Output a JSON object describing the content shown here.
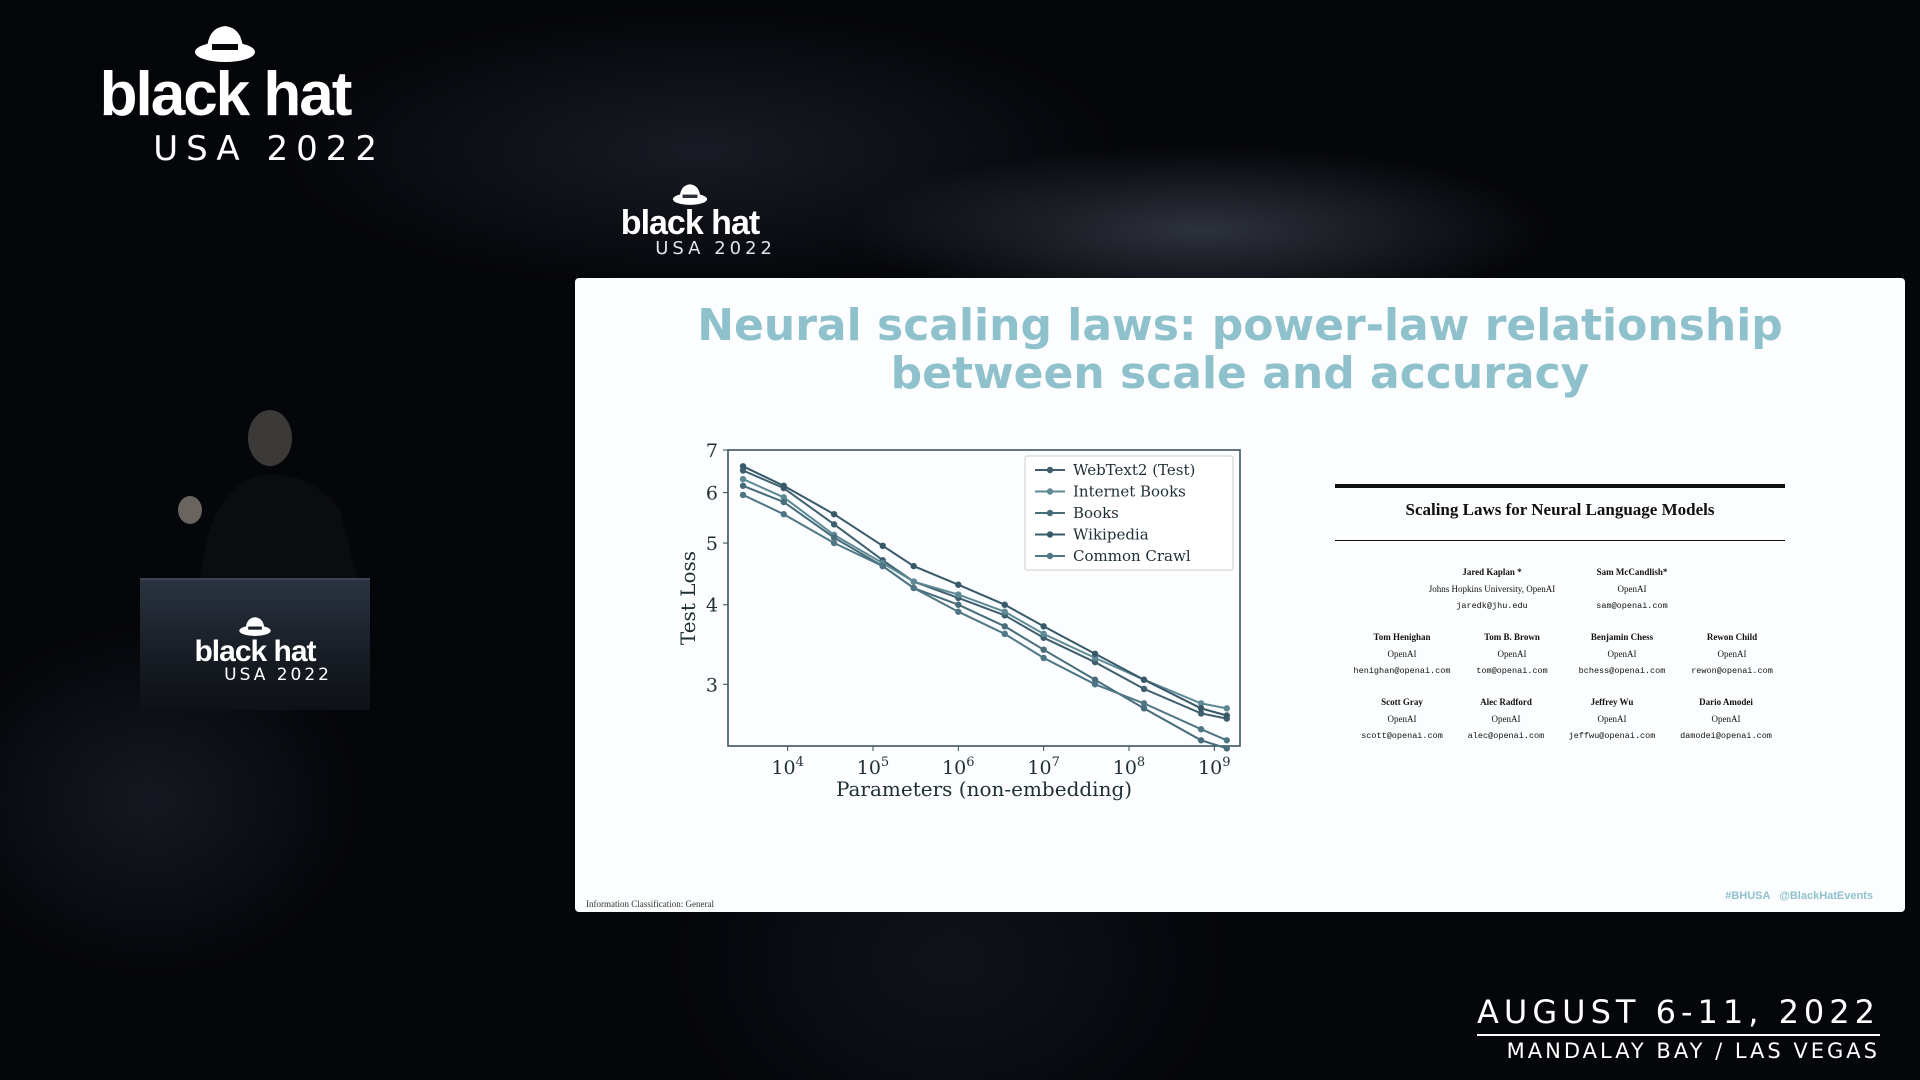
{
  "event": {
    "brand": "black hat",
    "edition": "USA 2022",
    "dates": "AUGUST 6-11, 2022",
    "venue": "MANDALAY BAY / LAS VEGAS"
  },
  "slide": {
    "title_line1": "Neural scaling laws: power-law relationship",
    "title_line2": "between scale and accuracy",
    "classification": "Information Classification: General",
    "hashtags": "#BHUSA @BlackHatEvents",
    "accent_color": "#8fc1cd"
  },
  "paper": {
    "title": "Scaling Laws for Neural Language Models",
    "authors": [
      {
        "name": "Jared Kaplan *",
        "affil": "Johns Hopkins University, OpenAI",
        "email": "jaredk@jhu.edu"
      },
      {
        "name": "Sam McCandlish*",
        "affil": "OpenAI",
        "email": "sam@openai.com"
      },
      {
        "name": "Tom Henighan",
        "affil": "OpenAI",
        "email": "henighan@openai.com"
      },
      {
        "name": "Tom B. Brown",
        "affil": "OpenAI",
        "email": "tom@openai.com"
      },
      {
        "name": "Benjamin Chess",
        "affil": "OpenAI",
        "email": "bchess@openai.com"
      },
      {
        "name": "Rewon Child",
        "affil": "OpenAI",
        "email": "rewon@openai.com"
      },
      {
        "name": "Scott Gray",
        "affil": "OpenAI",
        "email": "scott@openai.com"
      },
      {
        "name": "Alec Radford",
        "affil": "OpenAI",
        "email": "alec@openai.com"
      },
      {
        "name": "Jeffrey Wu",
        "affil": "OpenAI",
        "email": "jeffwu@openai.com"
      },
      {
        "name": "Dario Amodei",
        "affil": "OpenAI",
        "email": "damodei@openai.com"
      }
    ]
  },
  "chart_data": {
    "type": "line",
    "title": "",
    "xlabel": "Parameters (non-embedding)",
    "ylabel": "Test Loss",
    "xscale": "log",
    "yscale": "log",
    "xlim": [
      2000,
      2000000000
    ],
    "ylim": [
      2.4,
      7.0
    ],
    "xticks": [
      {
        "value": 10000,
        "base": "10",
        "exp": "4"
      },
      {
        "value": 100000,
        "base": "10",
        "exp": "5"
      },
      {
        "value": 1000000,
        "base": "10",
        "exp": "6"
      },
      {
        "value": 10000000,
        "base": "10",
        "exp": "7"
      },
      {
        "value": 100000000,
        "base": "10",
        "exp": "8"
      },
      {
        "value": 1000000000,
        "base": "10",
        "exp": "9"
      }
    ],
    "yticks": [
      3,
      4,
      5,
      6,
      7
    ],
    "grid": false,
    "legend_position": "top-right",
    "series": [
      {
        "name": "WebText2 (Test)",
        "color": "#3f5f6e",
        "points": [
          [
            3000,
            6.5
          ],
          [
            9000,
            6.1
          ],
          [
            35000,
            5.35
          ],
          [
            130000,
            4.7
          ],
          [
            300000,
            4.35
          ],
          [
            1000000,
            4.1
          ],
          [
            3500000,
            3.85
          ],
          [
            10000000,
            3.55
          ],
          [
            40000000,
            3.25
          ],
          [
            150000000,
            2.95
          ],
          [
            700000000,
            2.7
          ],
          [
            1400000000,
            2.65
          ]
        ]
      },
      {
        "name": "Internet Books",
        "color": "#5d8a94",
        "points": [
          [
            3000,
            6.3
          ],
          [
            9000,
            5.9
          ],
          [
            35000,
            5.15
          ],
          [
            130000,
            4.65
          ],
          [
            300000,
            4.35
          ],
          [
            1000000,
            4.15
          ],
          [
            3500000,
            3.9
          ],
          [
            10000000,
            3.6
          ],
          [
            40000000,
            3.3
          ],
          [
            150000000,
            3.05
          ],
          [
            700000000,
            2.8
          ],
          [
            1400000000,
            2.75
          ]
        ]
      },
      {
        "name": "Books",
        "color": "#476d7b",
        "points": [
          [
            3000,
            6.15
          ],
          [
            9000,
            5.8
          ],
          [
            35000,
            5.1
          ],
          [
            130000,
            4.6
          ],
          [
            300000,
            4.25
          ],
          [
            1000000,
            4.0
          ],
          [
            3500000,
            3.7
          ],
          [
            10000000,
            3.4
          ],
          [
            40000000,
            3.05
          ],
          [
            150000000,
            2.75
          ],
          [
            700000000,
            2.45
          ],
          [
            1400000000,
            2.38
          ]
        ]
      },
      {
        "name": "Wikipedia",
        "color": "#38596a",
        "points": [
          [
            3000,
            6.6
          ],
          [
            9000,
            6.15
          ],
          [
            35000,
            5.55
          ],
          [
            130000,
            4.95
          ],
          [
            300000,
            4.6
          ],
          [
            1000000,
            4.3
          ],
          [
            3500000,
            4.0
          ],
          [
            10000000,
            3.7
          ],
          [
            40000000,
            3.35
          ],
          [
            150000000,
            3.05
          ],
          [
            700000000,
            2.75
          ],
          [
            1400000000,
            2.68
          ]
        ]
      },
      {
        "name": "Common Crawl",
        "color": "#4e7685",
        "points": [
          [
            3000,
            5.95
          ],
          [
            9000,
            5.55
          ],
          [
            35000,
            5.0
          ],
          [
            130000,
            4.6
          ],
          [
            300000,
            4.25
          ],
          [
            1000000,
            3.9
          ],
          [
            3500000,
            3.6
          ],
          [
            10000000,
            3.3
          ],
          [
            40000000,
            3.0
          ],
          [
            150000000,
            2.8
          ],
          [
            700000000,
            2.55
          ],
          [
            1400000000,
            2.45
          ]
        ]
      }
    ]
  }
}
